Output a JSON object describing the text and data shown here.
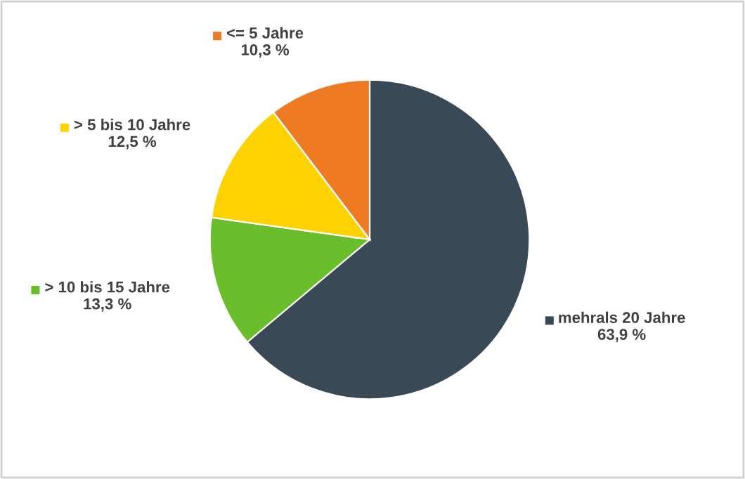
{
  "chart_data": {
    "type": "pie",
    "categories": [
      "mehrals 20 Jahre",
      "> 10 bis 15 Jahre",
      "> 5 bis 10 Jahre",
      "<= 5 Jahre"
    ],
    "values": [
      63.9,
      13.3,
      12.5,
      10.3
    ],
    "colors": [
      "#394956",
      "#6abd2b",
      "#fed100",
      "#ef7a24"
    ],
    "value_labels": [
      "63,9 %",
      "13,3 %",
      "12,5 %",
      "10,3 %"
    ],
    "legend": "top left"
  }
}
